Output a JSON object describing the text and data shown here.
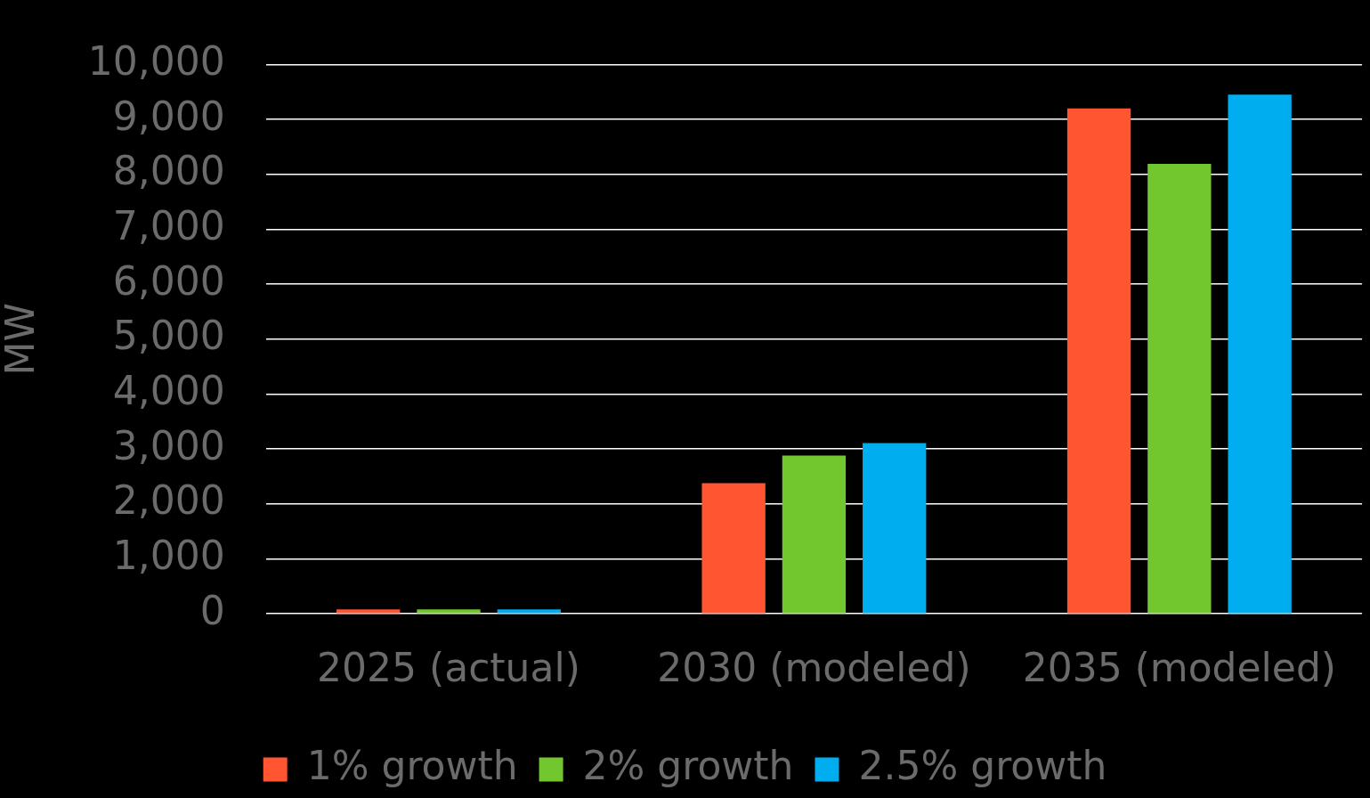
{
  "chart_data": {
    "type": "bar",
    "ylabel": "MW",
    "categories": [
      "2025 (actual)",
      "2030 (modeled)",
      "2035 (modeled)"
    ],
    "series": [
      {
        "name": "1% growth",
        "color": "#ff5530",
        "values": [
          80,
          2380,
          9200
        ]
      },
      {
        "name": "2% growth",
        "color": "#72c62e",
        "values": [
          80,
          2880,
          8190
        ]
      },
      {
        "name": "2.5% growth",
        "color": "#00adee",
        "values": [
          80,
          3110,
          9450
        ]
      }
    ],
    "ylim": [
      0,
      10000
    ],
    "yticks": [
      {
        "value": 0,
        "label": "0"
      },
      {
        "value": 1000,
        "label": "1,000"
      },
      {
        "value": 2000,
        "label": "2,000"
      },
      {
        "value": 3000,
        "label": "3,000"
      },
      {
        "value": 4000,
        "label": "4,000"
      },
      {
        "value": 5000,
        "label": "5,000"
      },
      {
        "value": 6000,
        "label": "6,000"
      },
      {
        "value": 7000,
        "label": "7,000"
      },
      {
        "value": 8000,
        "label": "8,000"
      },
      {
        "value": 9000,
        "label": "9,000"
      },
      {
        "value": 10000,
        "label": "10,000"
      }
    ],
    "grid": "y",
    "legend": "bottom"
  }
}
